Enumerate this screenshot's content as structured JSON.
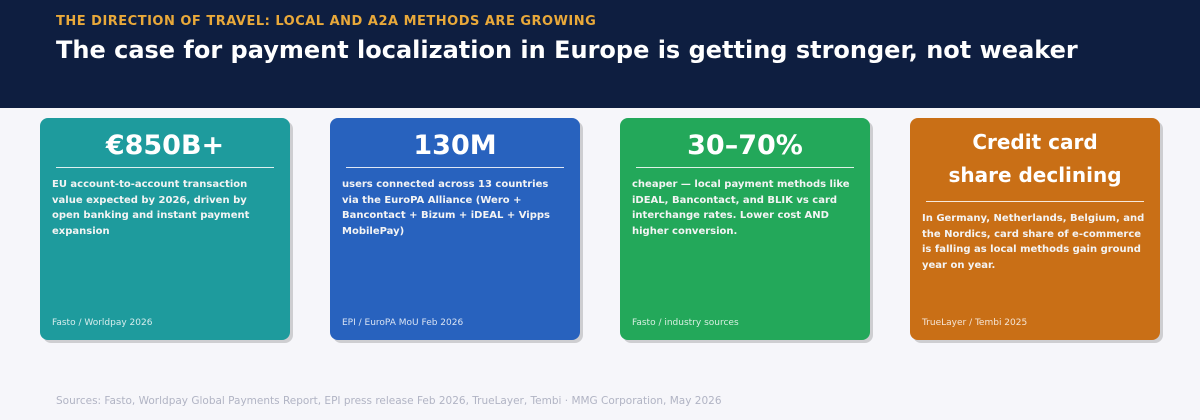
{
  "header": {
    "eyebrow": "THE DIRECTION OF TRAVEL: LOCAL AND A2A METHODS ARE GROWING",
    "title": "The case for payment localization in Europe is getting stronger, not weaker",
    "background": "#0e1e40",
    "eyebrow_color": "#e9a93a"
  },
  "cards": [
    {
      "stat": "€850B+",
      "description": "EU account-to-account transaction value expected by 2026, driven by open banking and instant payment expansion",
      "source": "Fasto / Worldpay 2026",
      "color": "#1e9b9d"
    },
    {
      "stat": "130M",
      "description": "users connected across 13 countries via the EuroPA Alliance (Wero + Bancontact + Bizum + iDEAL + Vipps MobilePay)",
      "source": "EPI / EuroPA MoU Feb 2026",
      "color": "#2862be"
    },
    {
      "stat": "30–70%",
      "description": "cheaper — local payment methods like iDEAL, Bancontact, and BLIK vs card interchange rates. Lower cost AND higher conversion.",
      "source": "Fasto / industry sources",
      "color": "#23a85a"
    },
    {
      "stat_line1": "Credit card",
      "stat_line2": "share declining",
      "description": "In Germany, Netherlands, Belgium, and the Nordics, card share of e-commerce is falling as local methods gain ground year on year.",
      "source": "TrueLayer / Tembi 2025",
      "color": "#c96f16"
    }
  ],
  "footer": {
    "text": "Sources: Fasto, Worldpay Global Payments Report, EPI press release Feb 2026, TrueLayer, Tembi  ·  MMG Corporation, May 2026"
  }
}
